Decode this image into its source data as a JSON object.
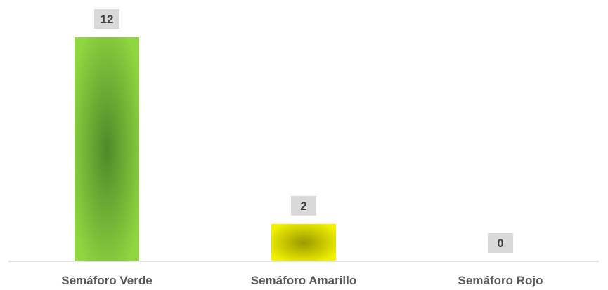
{
  "chart_data": {
    "type": "bar",
    "categories": [
      "Semáforo Verde",
      "Semáforo Amarillo",
      "Semáforo Rojo"
    ],
    "values": [
      12,
      2,
      0
    ],
    "colors": [
      "#8fd640",
      "#f2f200",
      "#e00000"
    ],
    "center_colors": [
      "#4e8a2a",
      "#9a9a00",
      "#800000"
    ],
    "ylim": [
      0,
      12
    ],
    "grid": false,
    "legend": "none",
    "data_labels": true
  }
}
